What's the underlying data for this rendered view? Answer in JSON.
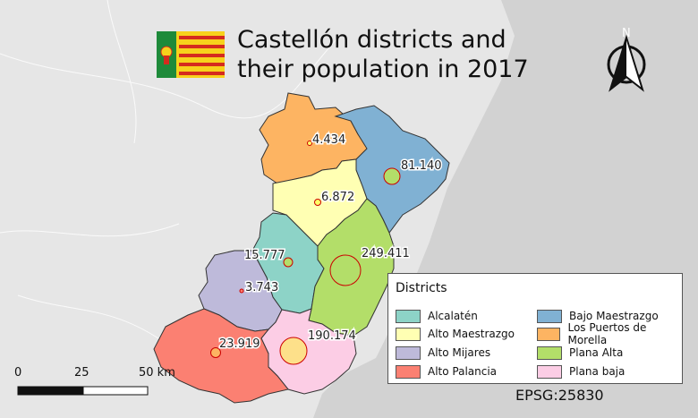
{
  "title": "Castellón districts and their population in 2017",
  "north_arrow": {
    "label": "N",
    "icon": "north-arrow-icon"
  },
  "flag": {
    "icon": "valencian-flag-icon",
    "stripe_colors": [
      "#f7d21c",
      "#d52b1e"
    ],
    "emblem_color": "#1e8a3a"
  },
  "legend": {
    "title": "Districts",
    "items": [
      {
        "label": "Alcalatén",
        "color": "#8dd3c7"
      },
      {
        "label": "Alto Maestrazgo",
        "color": "#ffffb3"
      },
      {
        "label": "Alto Mijares",
        "color": "#bebada"
      },
      {
        "label": "Alto Palancia",
        "color": "#fb8072"
      },
      {
        "label": "Bajo Maestrazgo",
        "color": "#80b1d3"
      },
      {
        "label": "Los Puertos de Morella",
        "color": "#fdb462"
      },
      {
        "label": "Plana Alta",
        "color": "#b3de69"
      },
      {
        "label": "Plana baja",
        "color": "#fccde5"
      }
    ]
  },
  "population_labels": [
    {
      "district": "Los Puertos de Morella",
      "text": "4.434",
      "value": 4434
    },
    {
      "district": "Bajo Maestrazgo",
      "text": "81.140",
      "value": 81140
    },
    {
      "district": "Alto Maestrazgo",
      "text": "6.872",
      "value": 6872
    },
    {
      "district": "Alcalatén",
      "text": "15.777",
      "value": 15777
    },
    {
      "district": "Plana Alta",
      "text": "249.411",
      "value": 249411
    },
    {
      "district": "Alto Mijares",
      "text": "3.743",
      "value": 3743
    },
    {
      "district": "Plana baja",
      "text": "190.174",
      "value": 190174
    },
    {
      "district": "Alto Palancia",
      "text": "23.919",
      "value": 23919
    }
  ],
  "scale_bar": {
    "labels": [
      "0",
      "25",
      "50 km"
    ]
  },
  "crs": "EPSG:25830",
  "colors": {
    "sea": "#d2d2d2",
    "land": "#ececec",
    "marker_fill": "#ffff66",
    "marker_stroke": "#cc0000"
  }
}
